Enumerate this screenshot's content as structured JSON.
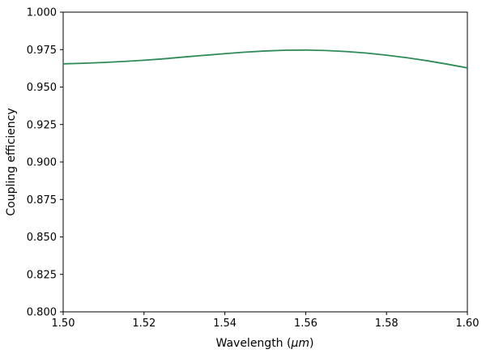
{
  "chart_data": {
    "type": "line",
    "title": "",
    "xlabel": {
      "pre": "Wavelength (",
      "italic": "μm",
      "post": ")"
    },
    "ylabel": "Coupling efficiency",
    "xlim": [
      1.5,
      1.6
    ],
    "ylim": [
      0.8,
      1.0
    ],
    "xtick_values": [
      1.5,
      1.52,
      1.54,
      1.56,
      1.58,
      1.6
    ],
    "xtick_labels": [
      "1.50",
      "1.52",
      "1.54",
      "1.56",
      "1.58",
      "1.60"
    ],
    "ytick_values": [
      0.8,
      0.825,
      0.85,
      0.875,
      0.9,
      0.925,
      0.95,
      0.975,
      1.0
    ],
    "ytick_labels": [
      "0.800",
      "0.825",
      "0.850",
      "0.875",
      "0.900",
      "0.925",
      "0.950",
      "0.975",
      "1.000"
    ],
    "grid": false,
    "legend": false,
    "line_color": "#2e8b57",
    "spine_color": "#000000",
    "series": [
      {
        "name": "coupling-efficiency",
        "x": [
          1.5,
          1.505,
          1.51,
          1.515,
          1.52,
          1.525,
          1.53,
          1.535,
          1.54,
          1.545,
          1.55,
          1.555,
          1.56,
          1.565,
          1.57,
          1.575,
          1.58,
          1.585,
          1.59,
          1.595,
          1.6
        ],
        "y": [
          0.9655,
          0.9659,
          0.9664,
          0.9671,
          0.9679,
          0.9689,
          0.9701,
          0.9712,
          0.9723,
          0.9733,
          0.9741,
          0.9746,
          0.9747,
          0.9744,
          0.9737,
          0.9727,
          0.9713,
          0.9696,
          0.9676,
          0.9653,
          0.9628
        ]
      }
    ]
  }
}
